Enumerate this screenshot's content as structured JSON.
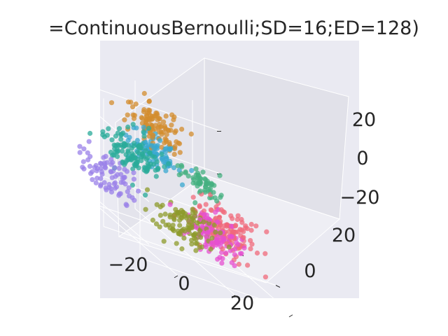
{
  "chart_data": {
    "type": "scatter",
    "projection": "3d",
    "title": "=ContinuousBernoulli;SD=16;ED=128)",
    "xlabel": "",
    "ylabel": "",
    "zlabel": "",
    "x_ticks": [
      "−20",
      "0",
      "20"
    ],
    "y_ticks": [
      "20",
      "0"
    ],
    "z_ticks": [
      "20",
      "0",
      "−20"
    ],
    "xlim": [
      -30,
      30
    ],
    "ylim": [
      -25,
      30
    ],
    "zlim": [
      -30,
      30
    ],
    "grid": true,
    "legend": "none",
    "background": "#eaeaf2",
    "series": [
      {
        "color": "#9a80e8",
        "center": [
          -27,
          2,
          -6
        ],
        "spread": 4.5,
        "count": 80
      },
      {
        "color": "#2aab9a",
        "center": [
          -15,
          6,
          6
        ],
        "spread": 4.5,
        "count": 120
      },
      {
        "color": "#3aa8d0",
        "center": [
          -2,
          18,
          5
        ],
        "spread": 4,
        "count": 90
      },
      {
        "color": "#d38c2e",
        "center": [
          2,
          24,
          15
        ],
        "spread": 4,
        "count": 110
      },
      {
        "color": "#44b080",
        "center": [
          10,
          9,
          2
        ],
        "spread": 3.5,
        "count": 60
      },
      {
        "color": "#8e9b2c",
        "center": [
          -6,
          -7,
          -14
        ],
        "spread": 4.5,
        "count": 110
      },
      {
        "color": "#e550d0",
        "center": [
          4,
          -6,
          -14
        ],
        "spread": 4.5,
        "count": 110
      },
      {
        "color": "#f0697b",
        "center": [
          12,
          0,
          -12
        ],
        "spread": 4.5,
        "count": 150
      }
    ]
  }
}
